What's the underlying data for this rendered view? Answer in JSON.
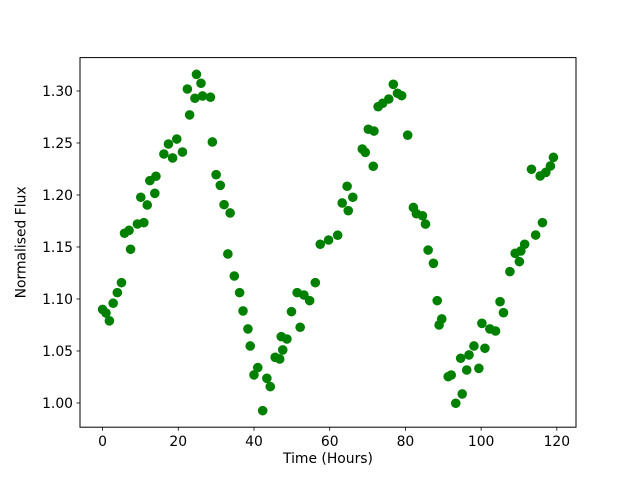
{
  "chart_data": {
    "type": "scatter",
    "title": "",
    "xlabel": "Time (Hours)",
    "ylabel": "Normalised Flux",
    "x_ticks": [
      0,
      20,
      40,
      60,
      80,
      100,
      120
    ],
    "y_ticks": [
      1.0,
      1.05,
      1.1,
      1.15,
      1.2,
      1.25,
      1.3
    ],
    "y_tick_decimals": 2,
    "xlim": [
      -5.96,
      125.06
    ],
    "ylim": [
      0.9767,
      1.3321
    ],
    "grid": false,
    "legend": "none",
    "marker_color": "#008000",
    "axis_color": "#000000",
    "background_color": "#ffffff",
    "marker_radius_px": 4.8,
    "points": [
      [
        0.0,
        1.09
      ],
      [
        0.9,
        1.0865
      ],
      [
        1.8,
        1.079
      ],
      [
        2.8,
        1.0959
      ],
      [
        3.9,
        1.1061
      ],
      [
        5.0,
        1.1157
      ],
      [
        5.8,
        1.1632
      ],
      [
        7.0,
        1.166
      ],
      [
        7.4,
        1.1478
      ],
      [
        9.2,
        1.1721
      ],
      [
        10.1,
        1.1978
      ],
      [
        10.9,
        1.1734
      ],
      [
        11.8,
        1.1904
      ],
      [
        12.5,
        1.2138
      ],
      [
        13.8,
        1.2016
      ],
      [
        14.1,
        1.218
      ],
      [
        16.2,
        1.2394
      ],
      [
        17.4,
        1.249
      ],
      [
        18.5,
        1.2356
      ],
      [
        19.6,
        1.2538
      ],
      [
        21.1,
        1.2413
      ],
      [
        22.4,
        1.3019
      ],
      [
        23.0,
        1.277
      ],
      [
        24.4,
        1.293
      ],
      [
        24.8,
        1.316
      ],
      [
        26.0,
        1.3074
      ],
      [
        26.4,
        1.2952
      ],
      [
        28.5,
        1.294
      ],
      [
        29.0,
        1.251
      ],
      [
        30.0,
        1.2195
      ],
      [
        31.1,
        1.2093
      ],
      [
        32.1,
        1.1907
      ],
      [
        33.1,
        1.1433
      ],
      [
        33.7,
        1.1827
      ],
      [
        34.8,
        1.1221
      ],
      [
        36.2,
        1.1061
      ],
      [
        37.1,
        1.0885
      ],
      [
        38.4,
        1.0712
      ],
      [
        39.0,
        1.0548
      ],
      [
        40.0,
        1.027
      ],
      [
        41.0,
        1.034
      ],
      [
        42.3,
        0.9926
      ],
      [
        43.4,
        1.0237
      ],
      [
        44.3,
        1.0157
      ],
      [
        45.6,
        1.0439
      ],
      [
        46.8,
        1.0423
      ],
      [
        47.2,
        1.0638
      ],
      [
        47.6,
        1.051
      ],
      [
        48.7,
        1.0615
      ],
      [
        49.9,
        1.0878
      ],
      [
        51.4,
        1.1061
      ],
      [
        52.2,
        1.0728
      ],
      [
        53.2,
        1.1038
      ],
      [
        54.7,
        1.0984
      ],
      [
        56.2,
        1.1157
      ],
      [
        57.5,
        1.1526
      ],
      [
        59.7,
        1.1567
      ],
      [
        62.1,
        1.1613
      ],
      [
        63.3,
        1.1923
      ],
      [
        64.6,
        1.2084
      ],
      [
        64.9,
        1.1849
      ],
      [
        66.1,
        1.1978
      ],
      [
        68.6,
        1.2442
      ],
      [
        69.4,
        1.241
      ],
      [
        70.2,
        1.2632
      ],
      [
        71.5,
        1.2276
      ],
      [
        71.7,
        1.2615
      ],
      [
        72.8,
        1.2849
      ],
      [
        74.0,
        1.2882
      ],
      [
        75.6,
        1.2923
      ],
      [
        76.8,
        1.3064
      ],
      [
        77.9,
        1.2978
      ],
      [
        79.0,
        1.2955
      ],
      [
        80.6,
        1.2575
      ],
      [
        82.1,
        1.188
      ],
      [
        82.9,
        1.182
      ],
      [
        84.5,
        1.18
      ],
      [
        85.3,
        1.172
      ],
      [
        86.0,
        1.147
      ],
      [
        87.4,
        1.1343
      ],
      [
        88.4,
        1.0984
      ],
      [
        88.9,
        1.075
      ],
      [
        89.6,
        1.0808
      ],
      [
        91.3,
        1.0253
      ],
      [
        92.1,
        1.0269
      ],
      [
        93.3,
        0.9997
      ],
      [
        94.6,
        1.043
      ],
      [
        95.0,
        1.0087
      ],
      [
        96.2,
        1.0317
      ],
      [
        96.8,
        1.0462
      ],
      [
        98.1,
        1.0548
      ],
      [
        99.4,
        1.0333
      ],
      [
        100.2,
        1.0766
      ],
      [
        101.0,
        1.0526
      ],
      [
        102.3,
        1.0712
      ],
      [
        103.8,
        1.0692
      ],
      [
        105.0,
        1.0974
      ],
      [
        105.9,
        1.0868
      ],
      [
        107.6,
        1.1263
      ],
      [
        109.0,
        1.1439
      ],
      [
        110.1,
        1.1359
      ],
      [
        110.5,
        1.1462
      ],
      [
        111.5,
        1.1526
      ],
      [
        113.3,
        1.2247
      ],
      [
        114.4,
        1.1615
      ],
      [
        115.6,
        1.2183
      ],
      [
        116.2,
        1.1734
      ],
      [
        117.1,
        1.2218
      ],
      [
        118.3,
        1.2279
      ],
      [
        119.1,
        1.2362
      ]
    ]
  }
}
